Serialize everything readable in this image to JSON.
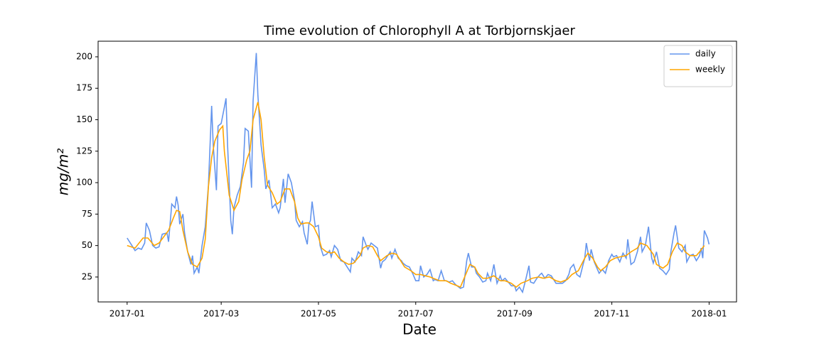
{
  "chart_data": {
    "type": "line",
    "title": "Time evolution of Chlorophyll A at Torbjornskjaer",
    "x_label": "Date",
    "y_label": "mg/m²",
    "xlim": [
      -18.2,
      382.2
    ],
    "xticks": [
      {
        "value": 0,
        "label": "2017-01"
      },
      {
        "value": 59,
        "label": "2017-03"
      },
      {
        "value": 120,
        "label": "2017-05"
      },
      {
        "value": 181,
        "label": "2017-07"
      },
      {
        "value": 243,
        "label": "2017-09"
      },
      {
        "value": 304,
        "label": "2017-11"
      },
      {
        "value": 365,
        "label": "2018-01"
      }
    ],
    "ylim": [
      5.2,
      212.4
    ],
    "yticks": [
      25,
      50,
      75,
      100,
      125,
      150,
      175,
      200
    ],
    "legend": "upper right",
    "series": [
      {
        "name": "daily",
        "color": "#6495ed",
        "x": [
          0,
          3,
          5,
          7,
          9,
          11,
          12,
          14,
          16,
          18,
          20,
          22,
          25,
          26,
          28,
          30,
          31,
          32,
          33,
          35,
          36,
          38,
          40,
          41,
          42,
          44,
          45,
          47,
          49,
          51,
          53,
          54,
          56,
          57,
          59,
          61,
          62,
          63,
          65,
          66,
          67,
          69,
          71,
          73,
          74,
          76,
          78,
          79,
          81,
          82,
          84,
          86,
          87,
          89,
          91,
          93,
          95,
          96,
          98,
          99,
          101,
          103,
          105,
          106,
          108,
          110,
          111,
          113,
          114,
          115,
          116,
          118,
          120,
          121,
          123,
          125,
          127,
          128,
          130,
          132,
          134,
          136,
          138,
          140,
          141,
          143,
          145,
          147,
          148,
          150,
          151,
          153,
          155,
          157,
          159,
          160,
          162,
          165,
          166,
          168,
          170,
          172,
          173,
          175,
          177,
          179,
          181,
          183,
          184,
          186,
          188,
          190,
          192,
          193,
          195,
          197,
          199,
          200,
          202,
          204,
          206,
          208,
          209,
          211,
          213,
          214,
          216,
          218,
          219,
          221,
          223,
          225,
          226,
          228,
          230,
          232,
          234,
          235,
          237,
          239,
          241,
          243,
          244,
          246,
          248,
          250,
          252,
          253,
          255,
          257,
          259,
          260,
          262,
          264,
          266,
          267,
          269,
          271,
          273,
          275,
          277,
          278,
          280,
          282,
          284,
          286,
          287,
          288,
          290,
          291,
          293,
          295,
          296,
          298,
          300,
          302,
          304,
          305,
          307,
          309,
          311,
          313,
          314,
          316,
          318,
          320,
          322,
          323,
          325,
          327,
          329,
          330,
          332,
          334,
          336,
          338,
          340,
          341,
          343,
          344,
          346,
          348,
          350,
          351,
          353,
          355,
          357,
          359,
          360,
          361,
          362,
          364,
          365
        ],
        "values": [
          56,
          50,
          46,
          48,
          47,
          52,
          68,
          62,
          50,
          48,
          49,
          59,
          60,
          53,
          83,
          80,
          89,
          82,
          67,
          75,
          60,
          45,
          35,
          42,
          28,
          33,
          28,
          50,
          65,
          98,
          161,
          130,
          94,
          145,
          147,
          160,
          167,
          130,
          70,
          59,
          80,
          90,
          97,
          116,
          143,
          141,
          96,
          165,
          203,
          170,
          130,
          110,
          95,
          102,
          80,
          83,
          76,
          80,
          103,
          84,
          107,
          100,
          86,
          70,
          65,
          69,
          60,
          51,
          67,
          70,
          85,
          65,
          66,
          50,
          42,
          43,
          46,
          41,
          50,
          47,
          38,
          37,
          33,
          29,
          40,
          37,
          45,
          42,
          57,
          50,
          47,
          52,
          50,
          48,
          32,
          37,
          39,
          45,
          40,
          47,
          40,
          38,
          36,
          34,
          33,
          28,
          22,
          22,
          34,
          25,
          27,
          31,
          22,
          23,
          22,
          30,
          22,
          22,
          21,
          22,
          19,
          17,
          16,
          17,
          38,
          44,
          33,
          33,
          28,
          25,
          21,
          22,
          28,
          22,
          35,
          20,
          26,
          22,
          24,
          21,
          18,
          18,
          14,
          17,
          13,
          23,
          34,
          21,
          20,
          24,
          27,
          28,
          24,
          27,
          26,
          24,
          20,
          20,
          20,
          22,
          27,
          32,
          35,
          27,
          25,
          35,
          40,
          52,
          38,
          47,
          37,
          31,
          28,
          31,
          28,
          38,
          43,
          41,
          42,
          37,
          44,
          40,
          55,
          35,
          37,
          45,
          57,
          45,
          50,
          65,
          40,
          36,
          45,
          32,
          30,
          27,
          31,
          45,
          60,
          66,
          48,
          45,
          50,
          37,
          42,
          43,
          38,
          42,
          48,
          40,
          62,
          56,
          51
        ]
      },
      {
        "name": "weekly",
        "color": "#ffa500",
        "x": [
          0,
          5,
          10,
          13,
          17,
          20,
          26,
          29,
          31,
          33,
          35,
          38,
          41,
          44,
          47,
          49,
          51,
          53,
          55,
          58,
          60,
          61,
          64,
          67,
          70,
          72,
          75,
          77,
          79,
          82,
          84,
          86,
          88,
          91,
          94,
          96,
          99,
          102,
          105,
          107,
          109,
          112,
          114,
          117,
          120,
          122,
          125,
          128,
          130,
          133,
          136,
          139,
          142,
          146,
          148,
          151,
          154,
          157,
          159,
          163,
          166,
          169,
          172,
          174,
          178,
          181,
          184,
          187,
          190,
          192,
          196,
          200,
          203,
          207,
          209,
          212,
          215,
          218,
          220,
          223,
          226,
          230,
          234,
          237,
          241,
          244,
          247,
          251,
          254,
          258,
          261,
          265,
          269,
          272,
          276,
          279,
          283,
          287,
          289,
          292,
          295,
          297,
          300,
          303,
          306,
          309,
          313,
          316,
          320,
          322,
          326,
          330,
          332,
          336,
          339,
          342,
          345,
          348,
          350,
          353,
          357,
          359,
          362
        ],
        "values": [
          50,
          48,
          56,
          56,
          50,
          52,
          62,
          72,
          78,
          77,
          62,
          45,
          35,
          33,
          40,
          55,
          97,
          120,
          133,
          142,
          145,
          125,
          90,
          78,
          85,
          102,
          118,
          125,
          150,
          164,
          150,
          120,
          98,
          92,
          83,
          85,
          95,
          95,
          85,
          72,
          67,
          68,
          68,
          65,
          57,
          48,
          45,
          44,
          45,
          40,
          37,
          35,
          36,
          42,
          48,
          50,
          49,
          42,
          38,
          42,
          44,
          43,
          37,
          33,
          30,
          27,
          27,
          26,
          25,
          24,
          22,
          22,
          20,
          18,
          17,
          26,
          35,
          33,
          28,
          24,
          24,
          26,
          22,
          22,
          20,
          17,
          20,
          22,
          24,
          25,
          24,
          25,
          22,
          21,
          23,
          27,
          30,
          40,
          44,
          40,
          33,
          30,
          33,
          38,
          40,
          41,
          42,
          45,
          48,
          52,
          50,
          43,
          35,
          32,
          35,
          45,
          52,
          50,
          45,
          42,
          42,
          45,
          50
        ]
      }
    ]
  }
}
